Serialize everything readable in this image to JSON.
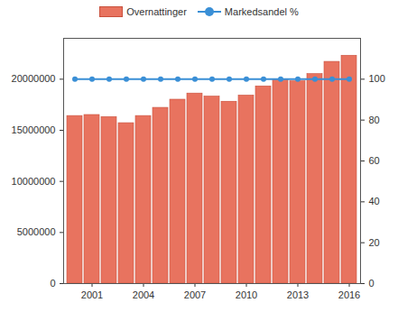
{
  "chart_data": {
    "type": "bar",
    "categories": [
      null,
      "2001",
      null,
      null,
      "2004",
      null,
      null,
      "2007",
      null,
      null,
      "2010",
      null,
      null,
      "2013",
      null,
      null,
      "2016"
    ],
    "series": [
      {
        "name": "Overnattinger",
        "type": "bar",
        "color": "#e8735f",
        "values": [
          16400000,
          16500000,
          16300000,
          15700000,
          16400000,
          17200000,
          18000000,
          18600000,
          18300000,
          17800000,
          18400000,
          19300000,
          20000000,
          19800000,
          20500000,
          21700000,
          22300000
        ]
      },
      {
        "name": "Markedsandel %",
        "type": "line",
        "axis": "y2",
        "color": "#3a8fd6",
        "marker": "circle",
        "values": [
          100,
          100,
          100,
          100,
          100,
          100,
          100,
          100,
          100,
          100,
          100,
          100,
          100,
          100,
          100,
          100,
          100
        ]
      }
    ],
    "ylim": [
      0,
      24000000
    ],
    "yticks": [
      0,
      5000000,
      10000000,
      15000000,
      20000000
    ],
    "y2lim": [
      0,
      120
    ],
    "y2ticks": [
      0,
      20,
      40,
      60,
      80,
      100
    ],
    "legend": "top",
    "grid": false
  }
}
